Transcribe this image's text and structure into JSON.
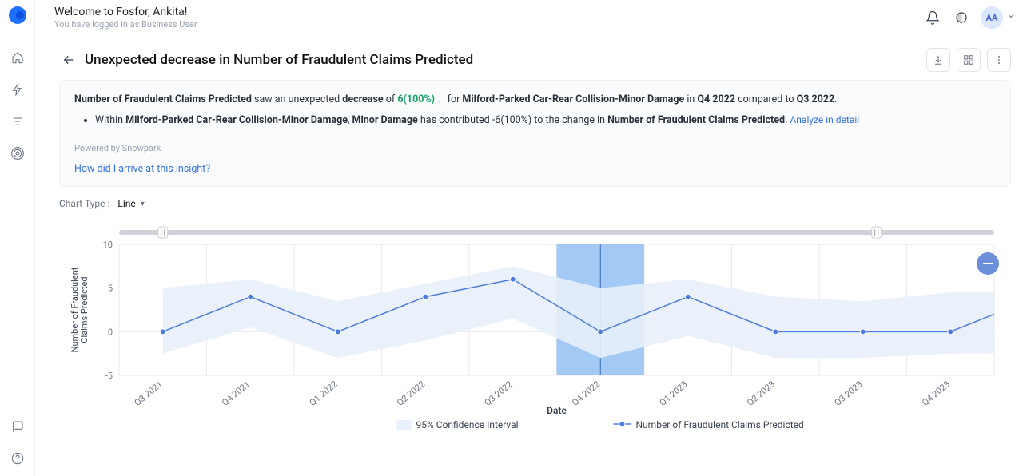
{
  "header": {
    "welcome_title": "Welcome to Fosfor, Ankita!",
    "welcome_sub": "You have logged in as Business User",
    "avatar_initials": "AA"
  },
  "page": {
    "title": "Unexpected decrease in Number of Fraudulent Claims Predicted"
  },
  "insight": {
    "metric": "Number of Fraudulent Claims Predicted",
    "change_word": "decrease",
    "change_value": "6(100%)",
    "segment": "Milford-Parked Car-Rear Collision-Minor Damage",
    "period": "Q4 2022",
    "compare_to": "Q3 2022",
    "bullet_segment": "Milford-Parked Car-Rear Collision-Minor Damage",
    "bullet_driver": "Minor Damage",
    "bullet_contrib": "-6(100%)",
    "bullet_metric": "Number of Fraudulent Claims Predicted",
    "analyze_link": "Analyze in detail",
    "powered": "Powered by Snowpark",
    "how_link": "How did I arrive at this insight?"
  },
  "chart_type": {
    "label": "Chart Type :",
    "value": "Line"
  },
  "chart": {
    "type": "line",
    "y_label": "Number of Fraudulent\nClaims Predicted",
    "x_label": "Date",
    "ylim": [
      -5,
      10
    ],
    "ytick_step": 5,
    "categories": [
      "Q3 2021",
      "Q4 2021",
      "Q1 2022",
      "Q2 2022",
      "Q3 2022",
      "Q4 2022",
      "Q1 2023",
      "Q2 2023",
      "Q3 2023",
      "Q4 2023"
    ],
    "values": [
      0,
      4,
      0,
      4,
      6,
      0,
      4,
      0,
      0,
      0
    ],
    "trailing_value": 2,
    "ci_upper": [
      5,
      6,
      3.5,
      5.5,
      7.5,
      5,
      6,
      4,
      3.5,
      4.5
    ],
    "ci_lower": [
      -2.5,
      0.5,
      -3,
      -1,
      1.5,
      -3,
      -0.5,
      -3,
      -3,
      -2.5
    ],
    "highlight_index": 5,
    "series_color": "#4d7bd9",
    "ci_color": "#e8f0fb",
    "highlight_color": "#93c1f2",
    "grid_color": "#e8eaee",
    "background_color": "#ffffff",
    "legend": {
      "ci": "95% Confidence Interval",
      "series": "Number of Fraudulent Claims Predicted"
    }
  }
}
